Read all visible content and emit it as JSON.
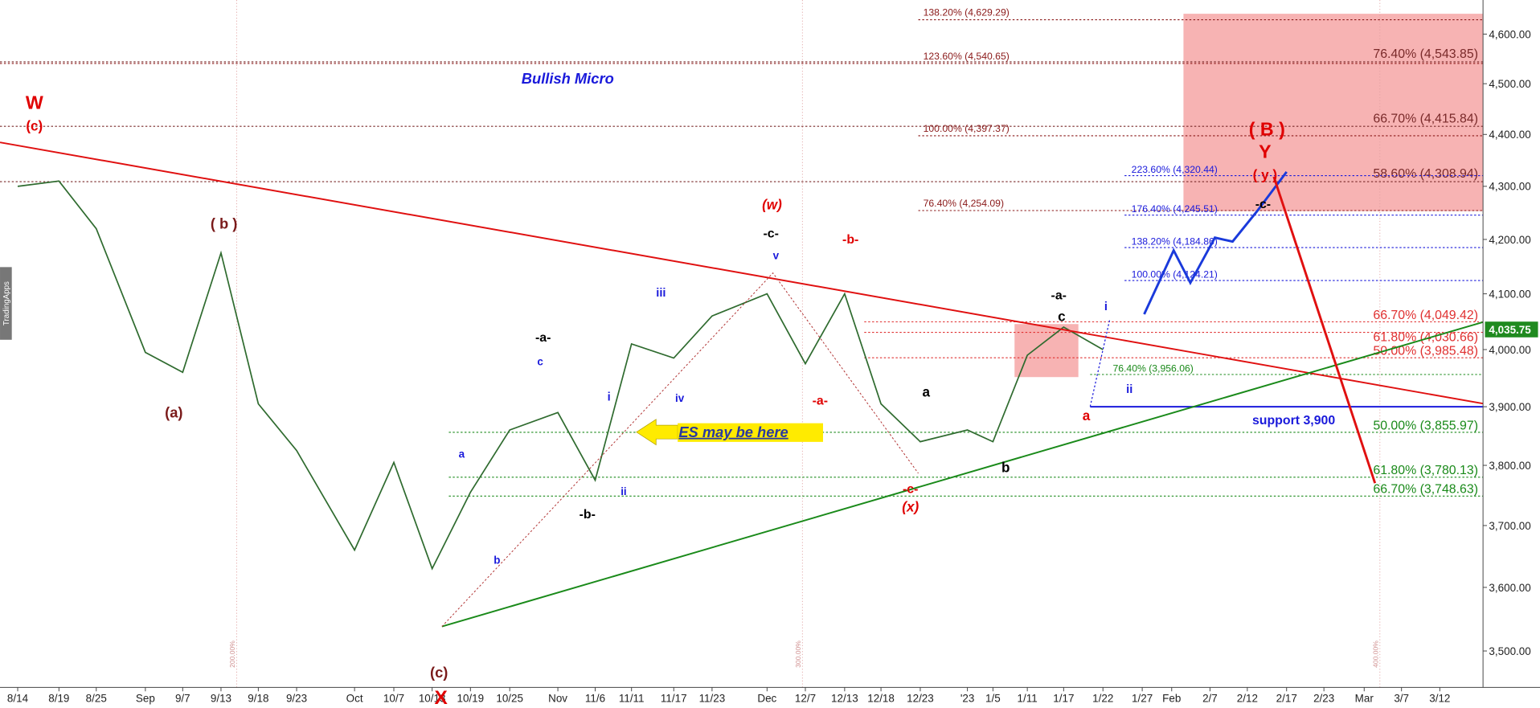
{
  "chart_data": {
    "type": "line",
    "color": "#2f6b2f",
    "log_scale": true,
    "categories": [
      "8/14",
      "8/19",
      "8/25",
      "Sep",
      "9/7",
      "9/13",
      "9/18",
      "9/23",
      "Oct",
      "10/7",
      "10/13",
      "10/19",
      "10/25",
      "Nov",
      "11/6",
      "11/11",
      "11/17",
      "11/23",
      "Dec",
      "12/7",
      "12/13",
      "12/18",
      "12/23",
      "'23",
      "1/5",
      "1/11",
      "1/17",
      "1/22",
      "1/27",
      "Feb",
      "2/7",
      "2/12",
      "2/17",
      "2/23",
      "Mar",
      "3/7",
      "3/12"
    ],
    "values": [
      4300,
      4310,
      4220,
      3995,
      3960,
      4175,
      3905,
      3825,
      3660,
      3805,
      3630,
      3755,
      3860,
      3890,
      3775,
      4010,
      3985,
      4060,
      4100,
      3975,
      4100,
      3905,
      3840,
      3860,
      3840,
      3990,
      4040,
      4000,
      null,
      null,
      null,
      null,
      null,
      null,
      null,
      null,
      null
    ],
    "ylim": [
      3444,
      4670
    ],
    "yticks": [
      {
        "value": 3500,
        "label": "3,500.00"
      },
      {
        "value": 3600,
        "label": "3,600.00"
      },
      {
        "value": 3700,
        "label": "3,700.00"
      },
      {
        "value": 3800,
        "label": "3,800.00"
      },
      {
        "value": 3900,
        "label": "3,900.00"
      },
      {
        "value": 4000,
        "label": "4,000.00"
      },
      {
        "value": 4100,
        "label": "4,100.00"
      },
      {
        "value": 4200,
        "label": "4,200.00"
      },
      {
        "value": 4300,
        "label": "4,300.00"
      },
      {
        "value": 4400,
        "label": "4,400.00"
      },
      {
        "value": 4500,
        "label": "4,500.00"
      },
      {
        "value": 4600,
        "label": "4,600.00"
      }
    ],
    "last_price": {
      "value": 4035.75,
      "label": "4,035.75",
      "color": "#1f8a1f"
    },
    "levels": [
      {
        "value": 4629.29,
        "label": "138.20% (4,629.29)",
        "color": "#8b1a1a"
      },
      {
        "value": 4540.65,
        "label": "123.60% (4,540.65)",
        "color": "#8b1a1a"
      },
      {
        "value": 4543.85,
        "label": "76.40% (4,543.85)",
        "color": "#7a2a2a"
      },
      {
        "value": 4397.37,
        "label": "100.00% (4,397.37)",
        "color": "#8b1a1a"
      },
      {
        "value": 4415.84,
        "label": "66.70% (4,415.84)",
        "color": "#7a2a2a"
      },
      {
        "value": 4308.94,
        "label": "58.60% (4,308.94)",
        "color": "#7a2a2a"
      },
      {
        "value": 4254.09,
        "label": "76.40% (4,254.09)",
        "color": "#8b1a1a"
      },
      {
        "value": 4320.44,
        "label": "223.60% (4,320.44)",
        "color": "#1a1adb"
      },
      {
        "value": 4245.51,
        "label": "176.40% (4,245.51)",
        "color": "#1a1adb"
      },
      {
        "value": 4184.86,
        "label": "138.20% (4,184.86)",
        "color": "#1a1adb"
      },
      {
        "value": 4124.21,
        "label": "100.00% (4,124.21)",
        "color": "#1a1adb"
      },
      {
        "value": 4049.42,
        "label": "66.70% (4,049.42)",
        "color": "#e03030"
      },
      {
        "value": 4030.66,
        "label": "61.80% (4,030.66)",
        "color": "#e03030"
      },
      {
        "value": 3985.48,
        "label": "50.00% (3,985.48)",
        "color": "#e03030"
      },
      {
        "value": 3956.06,
        "label": "76.40% (3,956.06)",
        "color": "#1a8a1a"
      },
      {
        "value": 3855.97,
        "label": "50.00% (3,855.97)",
        "color": "#1a8a1a"
      },
      {
        "value": 3780.13,
        "label": "61.80% (3,780.13)",
        "color": "#1a8a1a"
      },
      {
        "value": 3748.63,
        "label": "66.70% (3,748.63)",
        "color": "#1a8a1a"
      },
      {
        "value": 3900,
        "label": "support 3,900",
        "color": "#1a1adb"
      }
    ],
    "annotations": [
      {
        "text": "Bullish Micro",
        "color": "#1a1adb"
      },
      {
        "text": "W",
        "color": "#e00000"
      },
      {
        "text": "(c)",
        "color": "#e00000"
      },
      {
        "text": "( b )",
        "color": "#7a1a1a"
      },
      {
        "text": "(a)",
        "color": "#7a1a1a"
      },
      {
        "text": "(c)",
        "color": "#7a1a1a"
      },
      {
        "text": "X",
        "color": "#e00000"
      },
      {
        "text": "a",
        "color": "#1a1adb"
      },
      {
        "text": "b",
        "color": "#1a1adb"
      },
      {
        "text": "c",
        "color": "#1a1adb"
      },
      {
        "text": "-a-",
        "color": "#000000"
      },
      {
        "text": "i",
        "color": "#1a1adb"
      },
      {
        "text": "ii",
        "color": "#1a1adb"
      },
      {
        "text": "-b-",
        "color": "#000000"
      },
      {
        "text": "iii",
        "color": "#1a1adb"
      },
      {
        "text": "iv",
        "color": "#1a1adb"
      },
      {
        "text": "v",
        "color": "#1a1adb"
      },
      {
        "text": "-c-",
        "color": "#000000"
      },
      {
        "text": "(w)",
        "color": "#e00000"
      },
      {
        "text": "-b-",
        "color": "#e00000"
      },
      {
        "text": "-a-",
        "color": "#e00000"
      },
      {
        "text": "a",
        "color": "#000000"
      },
      {
        "text": "-c-",
        "color": "#e00000"
      },
      {
        "text": "(x)",
        "color": "#e00000"
      },
      {
        "text": "b",
        "color": "#000000"
      },
      {
        "text": "c",
        "color": "#000000"
      },
      {
        "text": "-a-",
        "color": "#000000"
      },
      {
        "text": "a",
        "color": "#e00000"
      },
      {
        "text": "i",
        "color": "#1a1adb"
      },
      {
        "text": "ii",
        "color": "#1a1adb"
      },
      {
        "text": "( B )",
        "color": "#e00000"
      },
      {
        "text": "Y",
        "color": "#e00000"
      },
      {
        "text": "( y )",
        "color": "#e00000"
      },
      {
        "text": "-c-",
        "color": "#000000"
      }
    ],
    "callout": "ES may be here",
    "cycle_labels": [
      "200.00%",
      "300.00%",
      "400.00%"
    ],
    "watermark": "TradingApps"
  }
}
